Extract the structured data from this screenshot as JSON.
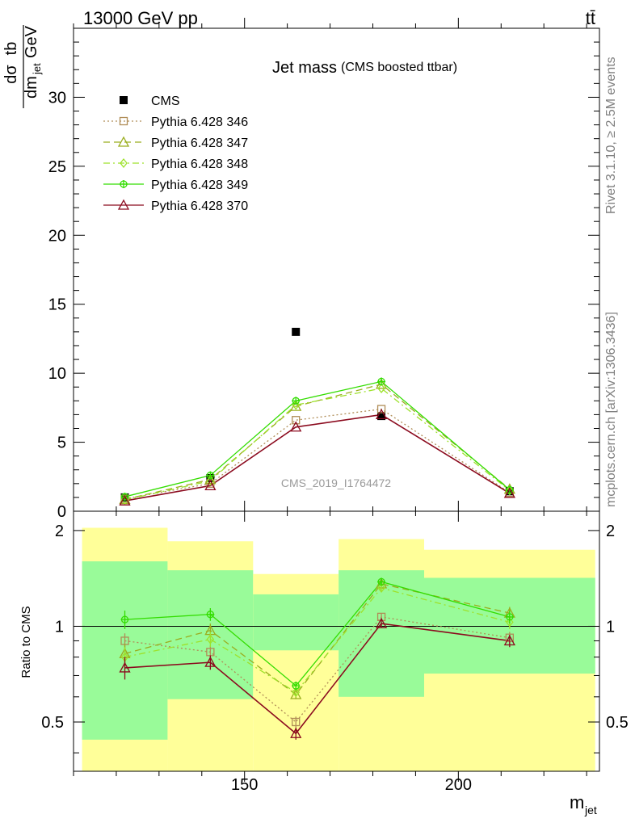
{
  "header": {
    "energy_label": "13000 GeV pp",
    "process_label": "tt̄"
  },
  "side_labels": {
    "rivet": "Rivet 3.1.10, ≥ 2.5M events",
    "mcplots": "mcplots.cern.ch [arXiv:1306.3436]"
  },
  "chart_data": [
    {
      "type": "scatter",
      "title": "Jet mass",
      "subtitle": "(CMS boosted ttbar)",
      "watermark": "CMS_2019_I1764472",
      "ylabel": {
        "num_prefix": "dσ",
        "num_suffix": "tb",
        "den": "dm",
        "den_sub": "jet",
        "den_unit": "GeV"
      },
      "xlim": [
        110,
        233
      ],
      "ylim": [
        0,
        35
      ],
      "yticks": [
        0,
        5,
        10,
        15,
        20,
        25,
        30
      ],
      "bins": [
        [
          112,
          132
        ],
        [
          132,
          152
        ],
        [
          152,
          172
        ],
        [
          172,
          192
        ],
        [
          192,
          232
        ]
      ],
      "x": [
        122,
        142,
        162,
        182,
        212
      ],
      "legend_position": "top-left",
      "series": [
        {
          "name": "CMS",
          "color": "#000000",
          "marker": "square-filled",
          "line": "none",
          "values": [
            1.0,
            2.4,
            13.0,
            6.9,
            1.45
          ]
        },
        {
          "name": "Pythia 6.428 346",
          "color": "#b08d57",
          "marker": "square-open",
          "line": "dotted",
          "values": [
            0.9,
            2.0,
            6.6,
            7.4,
            1.35
          ]
        },
        {
          "name": "Pythia 6.428 347",
          "color": "#9aad1e",
          "marker": "triangle-open",
          "line": "dash",
          "values": [
            0.85,
            2.3,
            7.6,
            9.2,
            1.6
          ]
        },
        {
          "name": "Pythia 6.428 348",
          "color": "#9de22b",
          "marker": "diamond-open",
          "line": "dashdot",
          "values": [
            0.82,
            2.2,
            7.7,
            8.9,
            1.5
          ]
        },
        {
          "name": "Pythia 6.428 349",
          "color": "#33dd00",
          "marker": "cross-open",
          "line": "solid",
          "values": [
            1.05,
            2.6,
            8.0,
            9.4,
            1.55
          ]
        },
        {
          "name": "Pythia 6.428 370",
          "color": "#8b0a1e",
          "marker": "triangle-open",
          "line": "solid",
          "values": [
            0.75,
            1.85,
            6.1,
            7.0,
            1.3
          ]
        }
      ]
    },
    {
      "type": "scatter",
      "ylabel": "Ratio to CMS",
      "xlabel": {
        "main": "m",
        "sub": "jet"
      },
      "xlim": [
        110,
        233
      ],
      "ylim": [
        0.35,
        2.3
      ],
      "log_y": true,
      "yticks": [
        0.5,
        1,
        2
      ],
      "xticks": [
        150,
        200
      ],
      "bins": [
        [
          112,
          132
        ],
        [
          132,
          152
        ],
        [
          152,
          172
        ],
        [
          172,
          192
        ],
        [
          192,
          232
        ]
      ],
      "x": [
        122,
        142,
        162,
        182,
        212
      ],
      "band_inner": [
        [
          0.44,
          1.6
        ],
        [
          0.59,
          1.5
        ],
        [
          0.84,
          1.26
        ],
        [
          0.6,
          1.5
        ],
        [
          0.71,
          1.42
        ]
      ],
      "band_outer": [
        [
          0.35,
          2.04
        ],
        [
          0.35,
          1.85
        ],
        [
          0.35,
          1.46
        ],
        [
          0.35,
          1.88
        ],
        [
          0.35,
          1.74
        ]
      ],
      "band_colors": {
        "inner": "#99fb99",
        "outer": "#ffff99"
      },
      "series": [
        {
          "name": "Pythia 6.428 346",
          "color": "#b08d57",
          "marker": "square-open",
          "line": "dotted",
          "values": [
            0.9,
            0.83,
            0.5,
            1.07,
            0.92
          ],
          "err": [
            0.05,
            0.04,
            0.02,
            0.03,
            0.04
          ]
        },
        {
          "name": "Pythia 6.428 347",
          "color": "#9aad1e",
          "marker": "triangle-open",
          "line": "dash",
          "values": [
            0.82,
            0.97,
            0.61,
            1.36,
            1.1
          ],
          "err": [
            0.06,
            0.05,
            0.02,
            0.03,
            0.05
          ]
        },
        {
          "name": "Pythia 6.428 348",
          "color": "#9de22b",
          "marker": "diamond-open",
          "line": "dashdot",
          "values": [
            0.8,
            0.91,
            0.62,
            1.32,
            1.03
          ],
          "err": [
            0.06,
            0.05,
            0.02,
            0.03,
            0.05
          ]
        },
        {
          "name": "Pythia 6.428 349",
          "color": "#33dd00",
          "marker": "cross-open",
          "line": "solid",
          "values": [
            1.05,
            1.09,
            0.65,
            1.38,
            1.07
          ],
          "err": [
            0.07,
            0.05,
            0.02,
            0.03,
            0.05
          ]
        },
        {
          "name": "Pythia 6.428 370",
          "color": "#8b0a1e",
          "marker": "triangle-open",
          "line": "solid",
          "values": [
            0.74,
            0.77,
            0.46,
            1.02,
            0.9
          ],
          "err": [
            0.06,
            0.04,
            0.02,
            0.03,
            0.04
          ]
        }
      ]
    }
  ]
}
